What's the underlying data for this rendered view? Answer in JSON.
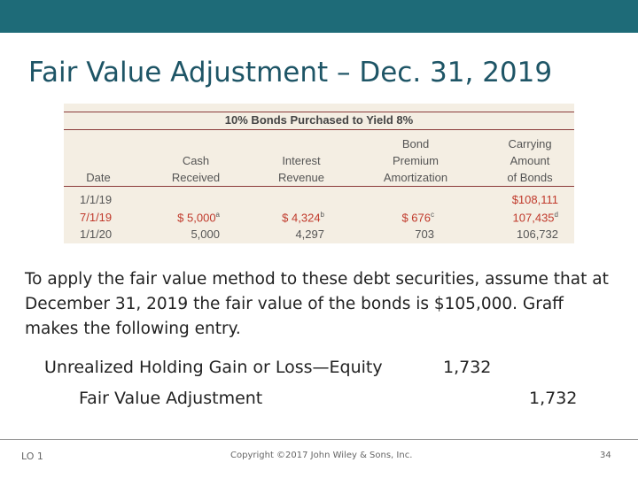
{
  "header": {
    "title": "Fair Value Adjustment – Dec. 31, 2019"
  },
  "table": {
    "caption": "10% Bonds Purchased to Yield 8%",
    "columns": [
      [
        "Date"
      ],
      [
        "Cash",
        "Received"
      ],
      [
        "Interest",
        "Revenue"
      ],
      [
        "Bond",
        "Premium",
        "Amortization"
      ],
      [
        "Carrying",
        "Amount",
        "of Bonds"
      ]
    ],
    "rows": [
      [
        "1/1/19",
        null,
        null,
        null,
        "$108,111"
      ],
      [
        "7/1/19",
        {
          "text": "$ 5,000",
          "note": "a"
        },
        {
          "text": "$ 4,324",
          "note": "b"
        },
        {
          "text": "$ 676",
          "note": "c"
        },
        {
          "text": "107,435",
          "note": "d"
        }
      ],
      [
        "1/1/20",
        "5,000",
        "4,297",
        "703",
        "106,732"
      ]
    ]
  },
  "body": "To apply the fair value method to these debt securities, assume that at December 31, 2019 the fair value of the bonds is $105,000. Graff makes the following entry.",
  "entry": {
    "debit_account": "Unrealized Holding Gain or Loss—Equity",
    "debit_amount": "1,732",
    "credit_account": "Fair Value Adjustment",
    "credit_amount": "1,732"
  },
  "footer": {
    "lo": "LO 1",
    "copyright": "Copyright ©2017 John Wiley & Sons, Inc.",
    "page": "34"
  }
}
